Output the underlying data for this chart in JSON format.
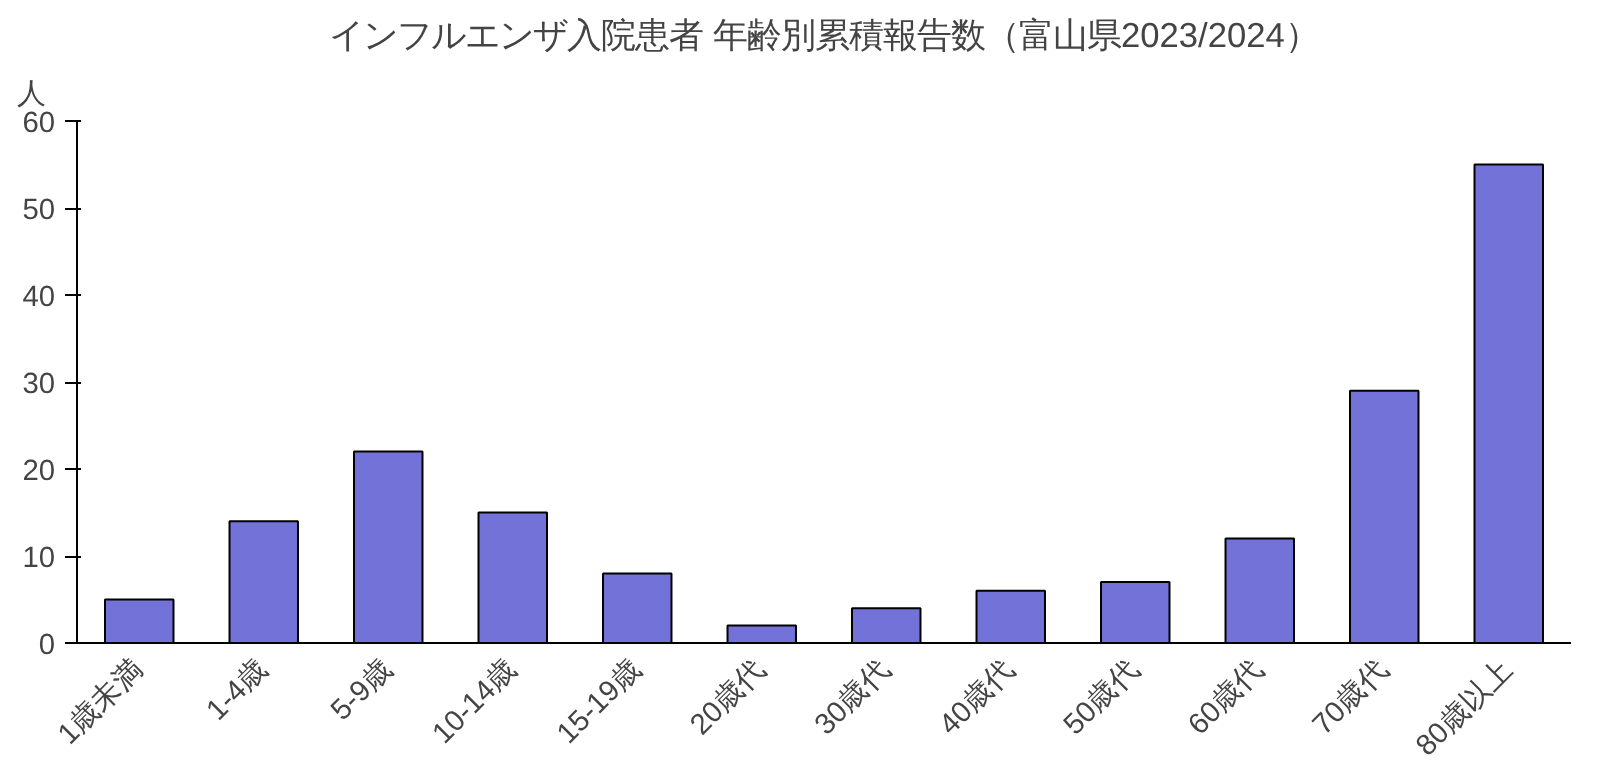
{
  "chart_data": {
    "type": "bar",
    "title": "インフルエンザ入院患者 年齢別累積報告数（富山県2023/2024）",
    "ylabel": "人",
    "categories": [
      "1歳未満",
      "1-4歳",
      "5-9歳",
      "10-14歳",
      "15-19歳",
      "20歳代",
      "30歳代",
      "40歳代",
      "50歳代",
      "60歳代",
      "70歳代",
      "80歳以上"
    ],
    "values": [
      5,
      14,
      22,
      15,
      8,
      2,
      4,
      6,
      7,
      12,
      29,
      55
    ],
    "color": "#7272d8",
    "ylim": [
      0,
      60
    ],
    "yticks": [
      0,
      10,
      20,
      30,
      40,
      50,
      60
    ],
    "grid": false
  }
}
